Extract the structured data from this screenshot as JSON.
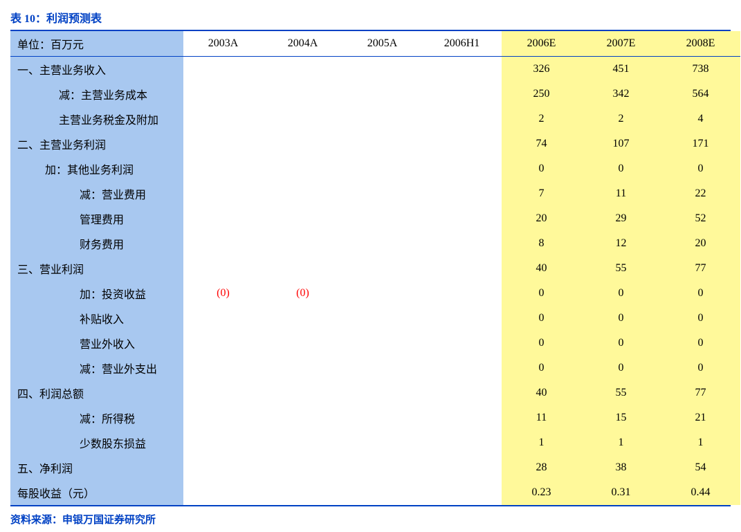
{
  "title": "表 10：利润预测表",
  "source": "资料来源：申银万国证券研究所",
  "unit_label": "单位：百万元",
  "columns": [
    "2003A",
    "2004A",
    "2005A",
    "2006H1",
    "2006E",
    "2007E",
    "2008E"
  ],
  "highlight_start_index": 4,
  "colors": {
    "title_text": "#0041c4",
    "border": "#0041c4",
    "label_bg": "#a8c8f0",
    "highlight_bg": "#fff99a",
    "negative_text": "#ff0000",
    "background": "#ffffff"
  },
  "rows": [
    {
      "label": "一、主营业务收入",
      "indent": 0,
      "values": [
        "",
        "",
        "",
        "",
        "326",
        "451",
        "738"
      ]
    },
    {
      "label": "减：主营业务成本",
      "indent": 2,
      "values": [
        "",
        "",
        "",
        "",
        "250",
        "342",
        "564"
      ]
    },
    {
      "label": "主营业务税金及附加",
      "indent": 2,
      "values": [
        "",
        "",
        "",
        "",
        "2",
        "2",
        "4"
      ]
    },
    {
      "label": "二、主营业务利润",
      "indent": 0,
      "values": [
        "",
        "",
        "",
        "",
        "74",
        "107",
        "171"
      ]
    },
    {
      "label": "加：其他业务利润",
      "indent": 1,
      "values": [
        "",
        "",
        "",
        "",
        "0",
        "0",
        "0"
      ]
    },
    {
      "label": "减：营业费用",
      "indent": 3,
      "values": [
        "",
        "",
        "",
        "",
        "7",
        "11",
        "22"
      ]
    },
    {
      "label": "管理费用",
      "indent": 3,
      "values": [
        "",
        "",
        "",
        "",
        "20",
        "29",
        "52"
      ]
    },
    {
      "label": "财务费用",
      "indent": 3,
      "values": [
        "",
        "",
        "",
        "",
        "8",
        "12",
        "20"
      ]
    },
    {
      "label": "三、营业利润",
      "indent": 0,
      "values": [
        "",
        "",
        "",
        "",
        "40",
        "55",
        "77"
      ]
    },
    {
      "label": "加：投资收益",
      "indent": 3,
      "values": [
        "(0)",
        "(0)",
        "",
        "",
        "0",
        "0",
        "0"
      ],
      "neg_indices": [
        0,
        1
      ]
    },
    {
      "label": "补贴收入",
      "indent": 3,
      "values": [
        "",
        "",
        "",
        "",
        "0",
        "0",
        "0"
      ]
    },
    {
      "label": "营业外收入",
      "indent": 3,
      "values": [
        "",
        "",
        "",
        "",
        "0",
        "0",
        "0"
      ]
    },
    {
      "label": "减：营业外支出",
      "indent": 3,
      "values": [
        "",
        "",
        "",
        "",
        "0",
        "0",
        "0"
      ]
    },
    {
      "label": "四、利润总额",
      "indent": 0,
      "values": [
        "",
        "",
        "",
        "",
        "40",
        "55",
        "77"
      ]
    },
    {
      "label": "减：所得税",
      "indent": 3,
      "values": [
        "",
        "",
        "",
        "",
        "11",
        "15",
        "21"
      ]
    },
    {
      "label": "少数股东损益",
      "indent": 3,
      "values": [
        "",
        "",
        "",
        "",
        "1",
        "1",
        "1"
      ]
    },
    {
      "label": "五、净利润",
      "indent": 0,
      "values": [
        "",
        "",
        "",
        "",
        "28",
        "38",
        "54"
      ]
    },
    {
      "label": "每股收益（元）",
      "indent": 0,
      "values": [
        "",
        "",
        "",
        "",
        "0.23",
        "0.31",
        "0.44"
      ]
    }
  ]
}
